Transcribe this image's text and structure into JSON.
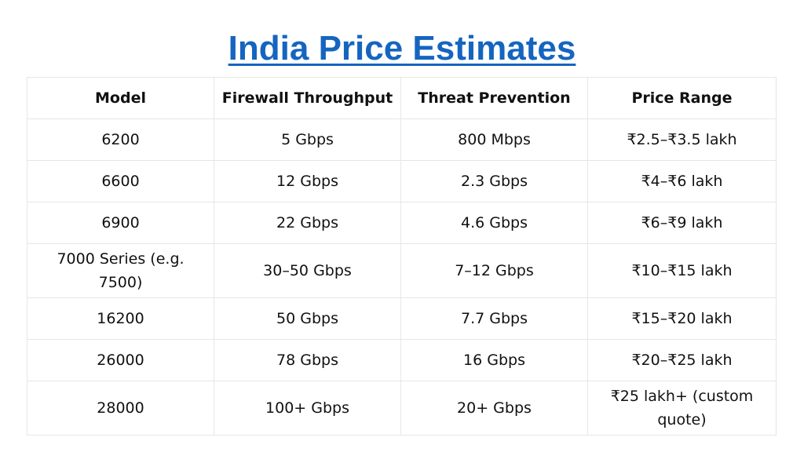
{
  "title": "India Price Estimates",
  "table": {
    "headers": [
      "Model",
      "Firewall Throughput",
      "Threat Prevention",
      "Price Range"
    ],
    "rows": [
      [
        "6200",
        "5 Gbps",
        "800 Mbps",
        "₹2.5–₹3.5 lakh"
      ],
      [
        "6600",
        "12 Gbps",
        "2.3 Gbps",
        "₹4–₹6 lakh"
      ],
      [
        "6900",
        "22 Gbps",
        "4.6 Gbps",
        "₹6–₹9 lakh"
      ],
      [
        "7000 Series (e.g. 7500)",
        "30–50 Gbps",
        "7–12 Gbps",
        "₹10–₹15 lakh"
      ],
      [
        "16200",
        "50 Gbps",
        "7.7 Gbps",
        "₹15–₹20 lakh"
      ],
      [
        "26000",
        "78 Gbps",
        "16 Gbps",
        "₹20–₹25 lakh"
      ],
      [
        "28000",
        "100+ Gbps",
        "20+ Gbps",
        "₹25 lakh+ (custom quote)"
      ]
    ]
  },
  "colors": {
    "title": "#1565c0",
    "grid": "#e6e6e6",
    "text": "#111111"
  }
}
